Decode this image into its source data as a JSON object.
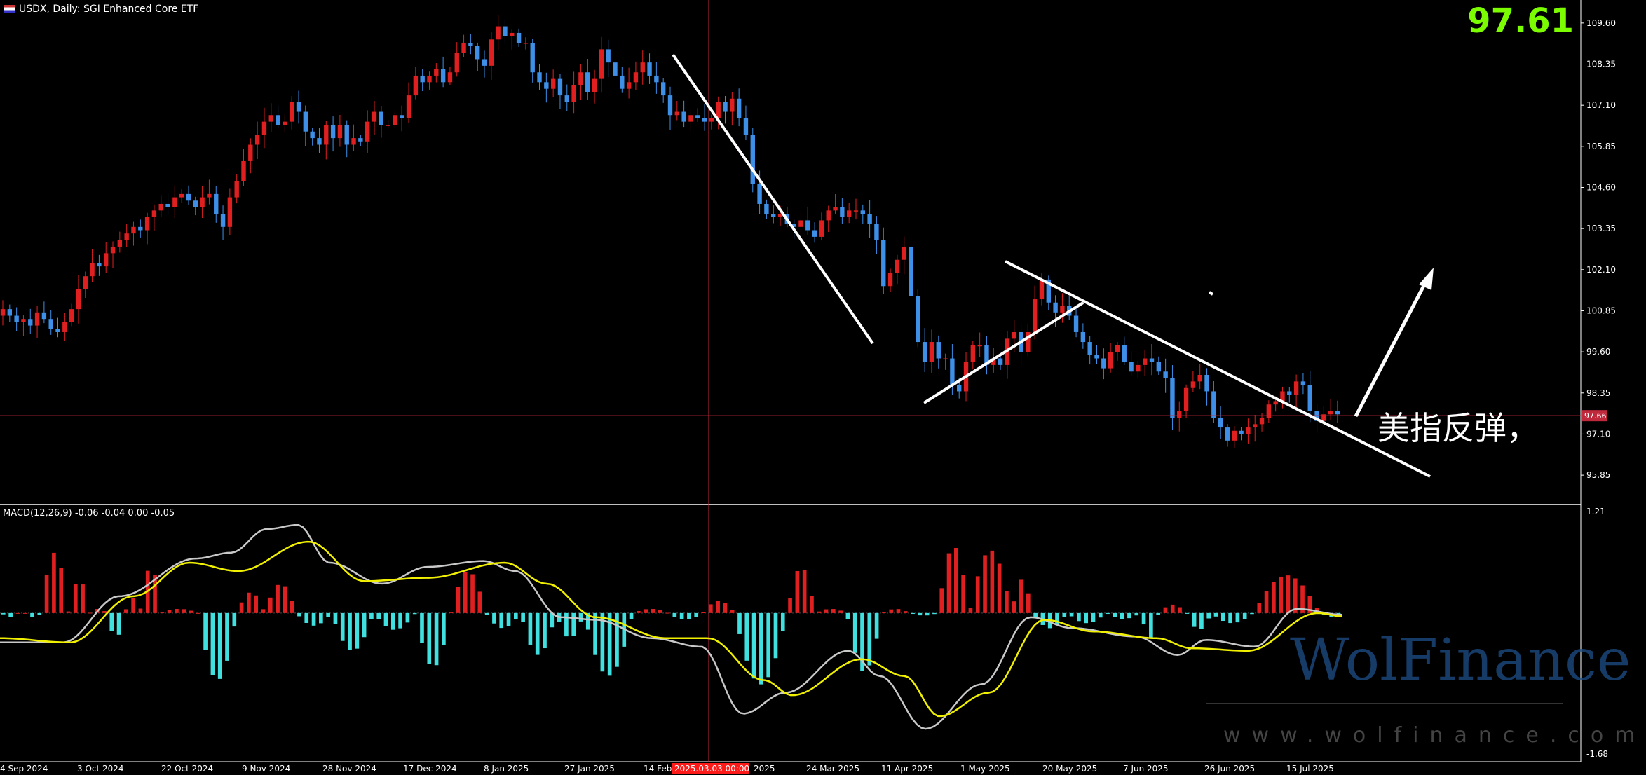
{
  "header": {
    "symbol_line": "USDX, Daily:  SGI Enhanced Core ETF",
    "macd_line": "MACD(12,26,9) -0.06 -0.04 0.00 -0.05"
  },
  "big_price": "97.61",
  "annotation": "美指反弹，",
  "watermark": {
    "brand": "WolFinance",
    "url": "www.wolfinance.com"
  },
  "colors": {
    "bg": "#000000",
    "up": "#e02020",
    "down": "#3d8fe8",
    "hist_up": "#e02020",
    "hist_down": "#40e0e0",
    "signal": "#f0f000",
    "macd": "#c8c8c8",
    "price_line": "#c0283c",
    "marker": "#ff1a1a",
    "axis_text": "#ffffff"
  },
  "chart_data": [
    {
      "type": "candlestick",
      "title": "USDX, Daily",
      "y_ticks": [
        "109.60",
        "108.35",
        "107.10",
        "105.85",
        "104.60",
        "103.35",
        "102.10",
        "100.85",
        "99.60",
        "98.35",
        "97.10",
        "95.85"
      ],
      "ylim": [
        95.0,
        110.3
      ],
      "current_price_label": "97.66",
      "x_tick_labels": [
        "4 Sep 2024",
        "3 Oct 2024",
        "22 Oct 2024",
        "9 Nov 2024",
        "28 Nov 2024",
        "17 Dec 2024",
        "8 Jan 2025",
        "27 Jan 2025",
        "14 Feb 2025",
        "2025.03.03 00:00",
        "2025",
        "24 Mar 2025",
        "11 Apr 2025",
        "1 May 2025",
        "20 May 2025",
        "7 Jun 2025",
        "26 Jun 2025",
        "15 Jul 2025"
      ],
      "closes": [
        100.9,
        100.7,
        100.5,
        100.6,
        100.4,
        100.8,
        100.6,
        100.3,
        100.2,
        100.5,
        100.9,
        101.5,
        101.9,
        102.3,
        102.2,
        102.6,
        102.8,
        103.0,
        103.2,
        103.4,
        103.3,
        103.7,
        103.9,
        104.1,
        104.0,
        104.3,
        104.4,
        104.2,
        104.0,
        104.3,
        104.4,
        103.8,
        103.4,
        104.3,
        104.8,
        105.4,
        105.9,
        106.2,
        106.6,
        106.8,
        106.5,
        106.6,
        107.2,
        106.9,
        106.3,
        106.1,
        105.9,
        106.5,
        106.1,
        106.5,
        105.9,
        106.1,
        106.0,
        106.6,
        106.9,
        106.5,
        106.5,
        106.8,
        106.7,
        107.4,
        108.0,
        107.8,
        108.0,
        108.2,
        107.8,
        108.1,
        108.7,
        109.0,
        108.9,
        108.5,
        108.3,
        109.1,
        109.5,
        109.2,
        109.3,
        109.0,
        109.0,
        108.1,
        107.8,
        107.6,
        107.9,
        107.4,
        107.2,
        107.7,
        108.1,
        107.5,
        107.9,
        108.8,
        108.4,
        108.0,
        107.6,
        107.8,
        108.1,
        108.4,
        108.0,
        107.8,
        107.4,
        106.8,
        106.9,
        106.6,
        106.8,
        106.7,
        106.6,
        106.7,
        107.2,
        106.9,
        107.3,
        106.7,
        106.2,
        104.7,
        104.1,
        103.8,
        103.7,
        103.8,
        103.5,
        103.4,
        103.6,
        103.3,
        103.1,
        103.6,
        103.9,
        104.0,
        103.7,
        103.9,
        103.9,
        103.8,
        103.5,
        103.0,
        101.6,
        102.0,
        102.4,
        102.8,
        101.3,
        99.9,
        99.3,
        99.9,
        99.4,
        99.4,
        98.6,
        98.4,
        99.3,
        99.8,
        99.8,
        99.2,
        99.4,
        99.2,
        100.0,
        100.2,
        99.6,
        100.2,
        101.2,
        101.8,
        101.1,
        100.8,
        101.0,
        100.7,
        100.2,
        99.9,
        99.5,
        99.4,
        99.1,
        99.6,
        99.8,
        99.3,
        99.0,
        99.2,
        99.4,
        99.3,
        99.0,
        98.8,
        97.6,
        97.8,
        98.5,
        98.7,
        98.9,
        98.4,
        97.6,
        97.3,
        96.9,
        97.2,
        97.1,
        97.3,
        97.4,
        97.6,
        98.0,
        98.1,
        98.4,
        98.3,
        98.7,
        98.6,
        97.8,
        97.5,
        97.7,
        97.8,
        97.7
      ]
    },
    {
      "type": "macd",
      "title": "MACD(12,26,9)",
      "values": {
        "macd": -0.06,
        "signal": -0.04,
        "hist_a": 0.0,
        "hist_b": -0.05
      },
      "y_ticks": [
        "1.21",
        "-1.68"
      ],
      "ylim": [
        -1.68,
        1.21
      ]
    }
  ]
}
